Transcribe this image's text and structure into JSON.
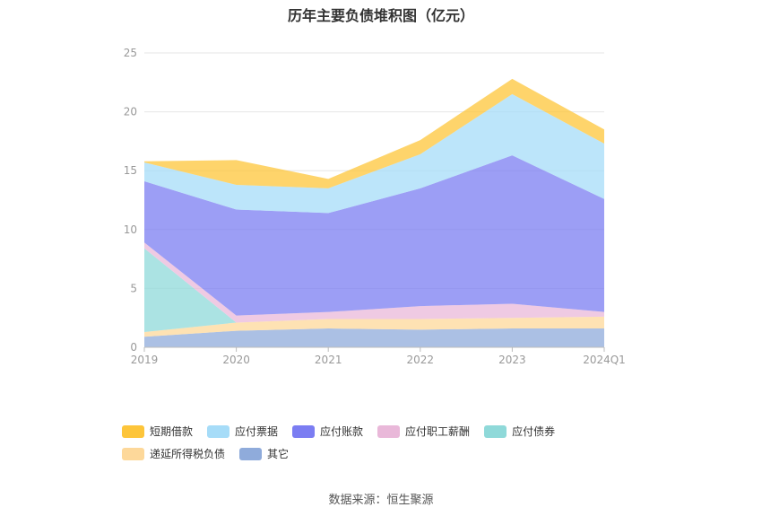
{
  "chart_data": {
    "type": "area",
    "stacked": true,
    "title": "历年主要负债堆积图（亿元）",
    "categories": [
      "2019",
      "2020",
      "2021",
      "2022",
      "2023",
      "2024Q1"
    ],
    "ylim": [
      0,
      25
    ],
    "yticks": [
      "0",
      "5",
      "10",
      "15",
      "20",
      "25"
    ],
    "grid": true,
    "legend_position": "bottom",
    "series": [
      {
        "name": "其它",
        "color": "#8fabdb",
        "values": [
          0.9,
          1.4,
          1.6,
          1.5,
          1.6,
          1.6
        ]
      },
      {
        "name": "递延所得税负债",
        "color": "#fdd89a",
        "values": [
          0.4,
          0.7,
          0.8,
          0.9,
          0.9,
          1.0
        ]
      },
      {
        "name": "应付债券",
        "color": "#8fd9d9",
        "values": [
          7.1,
          0.0,
          0.0,
          0.0,
          0.0,
          0.0
        ]
      },
      {
        "name": "应付职工薪酬",
        "color": "#e9b8d9",
        "values": [
          0.5,
          0.6,
          0.6,
          1.1,
          1.2,
          0.4
        ]
      },
      {
        "name": "应付账款",
        "color": "#7b7df2",
        "values": [
          5.2,
          9.0,
          8.4,
          10.0,
          12.6,
          9.6
        ]
      },
      {
        "name": "应付票据",
        "color": "#a6dcf8",
        "values": [
          1.6,
          2.1,
          2.1,
          2.9,
          5.2,
          4.7
        ]
      },
      {
        "name": "短期借款",
        "color": "#fdc53a",
        "values": [
          0.1,
          2.1,
          0.8,
          1.2,
          1.3,
          1.2
        ]
      }
    ]
  },
  "legend_order": [
    "短期借款",
    "应付票据",
    "应付账款",
    "应付职工薪酬",
    "应付债券",
    "递延所得税负债",
    "其它"
  ],
  "source": "数据来源：恒生聚源"
}
